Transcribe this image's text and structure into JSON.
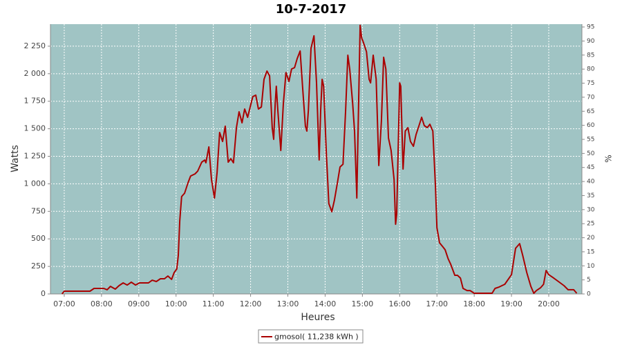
{
  "chart_data": {
    "type": "line",
    "title": "10-7-2017",
    "x_label": "Heures",
    "y_label": "Watts",
    "y2_label": "%",
    "x": [
      6.94,
      7.0,
      7.69,
      7.8,
      8.06,
      8.15,
      8.24,
      8.37,
      8.47,
      8.58,
      8.69,
      8.8,
      8.91,
      9.02,
      9.26,
      9.36,
      9.47,
      9.58,
      9.69,
      9.78,
      9.88,
      9.95,
      10.02,
      10.06,
      10.1,
      10.15,
      10.23,
      10.32,
      10.39,
      10.51,
      10.58,
      10.69,
      10.77,
      10.8,
      10.88,
      10.95,
      11.03,
      11.1,
      11.17,
      11.25,
      11.32,
      11.4,
      11.47,
      11.54,
      11.62,
      11.69,
      11.77,
      11.84,
      11.92,
      11.99,
      12.06,
      12.14,
      12.21,
      12.29,
      12.36,
      12.44,
      12.51,
      12.58,
      12.62,
      12.66,
      12.69,
      12.73,
      12.81,
      12.88,
      12.95,
      13.03,
      13.1,
      13.18,
      13.25,
      13.33,
      13.4,
      13.47,
      13.51,
      13.55,
      13.62,
      13.7,
      13.77,
      13.84,
      13.88,
      13.92,
      13.96,
      14.03,
      14.1,
      14.18,
      14.25,
      14.33,
      14.4,
      14.48,
      14.55,
      14.61,
      14.66,
      14.74,
      14.79,
      14.85,
      14.88,
      14.94,
      14.98,
      15.03,
      15.11,
      15.18,
      15.22,
      15.29,
      15.37,
      15.44,
      15.51,
      15.57,
      15.63,
      15.7,
      15.77,
      15.85,
      15.89,
      15.92,
      16.0,
      16.03,
      16.09,
      16.15,
      16.22,
      16.29,
      16.37,
      16.44,
      16.52,
      16.59,
      16.66,
      16.74,
      16.81,
      16.89,
      16.96,
      17.0,
      17.07,
      17.15,
      17.22,
      17.3,
      17.37,
      17.48,
      17.55,
      17.63,
      17.7,
      17.81,
      17.89,
      18.0,
      18.48,
      18.56,
      18.67,
      18.82,
      19.0,
      19.11,
      19.22,
      19.3,
      19.41,
      19.52,
      19.6,
      19.67,
      19.78,
      19.86,
      19.93,
      20.0,
      20.11,
      20.26,
      20.41,
      20.52,
      20.67,
      20.75
    ],
    "series": [
      {
        "name": "gmosol( 11,238 kWh )",
        "color": "#aa0000",
        "values": [
          0,
          25,
          25,
          50,
          50,
          38,
          69,
          44,
          75,
          100,
          81,
          107,
          81,
          100,
          100,
          125,
          113,
          138,
          138,
          163,
          132,
          194,
          226,
          351,
          664,
          884,
          915,
          1009,
          1071,
          1090,
          1115,
          1197,
          1216,
          1191,
          1335,
          1040,
          871,
          1103,
          1466,
          1385,
          1523,
          1197,
          1228,
          1191,
          1510,
          1654,
          1554,
          1679,
          1604,
          1698,
          1792,
          1805,
          1679,
          1698,
          1949,
          2024,
          1980,
          1510,
          1404,
          1729,
          1886,
          1667,
          1303,
          1729,
          2011,
          1930,
          2043,
          2055,
          2137,
          2206,
          1855,
          1523,
          1479,
          1667,
          2231,
          2344,
          1917,
          1216,
          1667,
          1949,
          1886,
          1291,
          821,
          746,
          852,
          1009,
          1153,
          1178,
          1667,
          2168,
          2043,
          1729,
          1479,
          871,
          1416,
          2440,
          2325,
          2281,
          2199,
          1949,
          1917,
          2168,
          1949,
          1166,
          1573,
          2149,
          2043,
          1416,
          1303,
          1040,
          633,
          727,
          1917,
          1886,
          1134,
          1479,
          1510,
          1385,
          1341,
          1447,
          1529,
          1604,
          1529,
          1510,
          1541,
          1479,
          977,
          602,
          464,
          432,
          401,
          320,
          269,
          169,
          169,
          144,
          50,
          31,
          31,
          6,
          6,
          50,
          63,
          88,
          175,
          414,
          457,
          351,
          194,
          69,
          6,
          31,
          56,
          88,
          213,
          175,
          150,
          113,
          75,
          38,
          38,
          6
        ]
      }
    ],
    "xlim": [
      6.63,
      20.89
    ],
    "xticks": [
      {
        "value": 7,
        "label": "07:00"
      },
      {
        "value": 8,
        "label": "08:00"
      },
      {
        "value": 9,
        "label": "09:00"
      },
      {
        "value": 10,
        "label": "10:00"
      },
      {
        "value": 11,
        "label": "11:00"
      },
      {
        "value": 12,
        "label": "12:00"
      },
      {
        "value": 13,
        "label": "13:00"
      },
      {
        "value": 14,
        "label": "14:00"
      },
      {
        "value": 15,
        "label": "15:00"
      },
      {
        "value": 16,
        "label": "16:00"
      },
      {
        "value": 17,
        "label": "17:00"
      },
      {
        "value": 18,
        "label": "18:00"
      },
      {
        "value": 19,
        "label": "19:00"
      },
      {
        "value": 20,
        "label": "20:00"
      }
    ],
    "ylim": [
      0,
      2450
    ],
    "yticks": [
      0,
      250,
      500,
      750,
      {
        "value": 1000,
        "label": "1 000"
      },
      {
        "value": 1250,
        "label": "1 250"
      },
      {
        "value": 1500,
        "label": "1 500"
      },
      {
        "value": 1750,
        "label": "1 750"
      },
      {
        "value": 2000,
        "label": "2 000"
      },
      {
        "value": 2250,
        "label": "2 250"
      }
    ],
    "y2lim": [
      0,
      96
    ],
    "y2ticks": [
      0,
      5,
      10,
      15,
      20,
      25,
      30,
      35,
      40,
      45,
      50,
      55,
      60,
      65,
      70,
      75,
      80,
      85,
      90,
      95
    ],
    "grid": true
  }
}
